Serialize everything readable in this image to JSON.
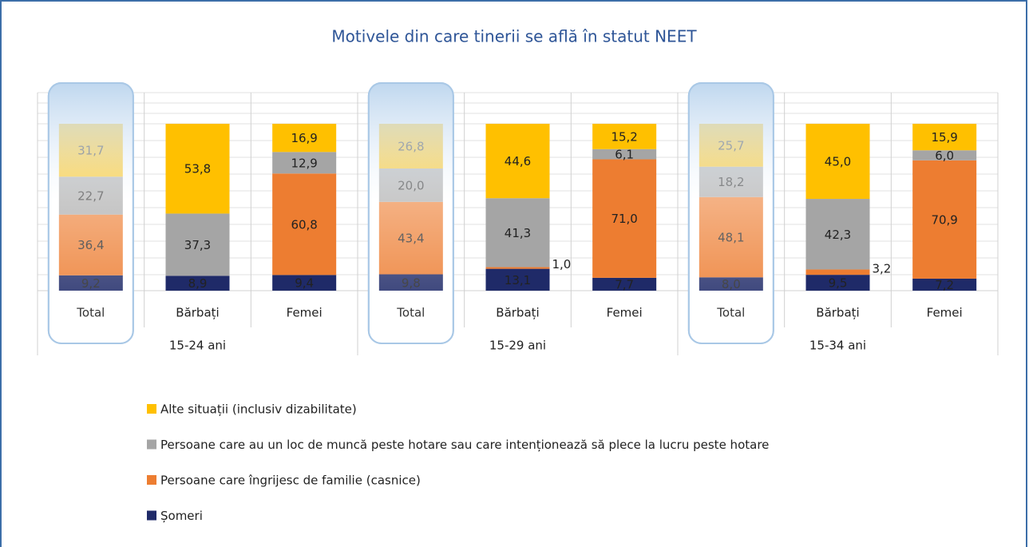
{
  "chart_data": {
    "type": "stacked-bar",
    "title": "Motivele din care tinerii se află în statut NEET",
    "categories": [
      "Total",
      "Bărbați",
      "Femei",
      "Total",
      "Bărbați",
      "Femei",
      "Total",
      "Bărbați",
      "Femei"
    ],
    "groups": [
      "15-24 ani",
      "15-29 ani",
      "15-34 ani"
    ],
    "ylim": [
      0,
      100
    ],
    "series": [
      {
        "name": "Șomeri",
        "color": "#1f2a68",
        "values": [
          9.2,
          8.9,
          9.4,
          9.8,
          13.1,
          7.7,
          8.0,
          9.5,
          7.2
        ],
        "value_labels": [
          "9,2",
          "8,9",
          "9,4",
          "9,8",
          "13,1",
          "7,7",
          "8,0",
          "9,5",
          "7,2"
        ]
      },
      {
        "name": "Persoane care îngrijesc de familie (casnice)",
        "color": "#ed7d31",
        "values": [
          36.4,
          null,
          60.8,
          43.4,
          1.0,
          71.0,
          48.1,
          3.2,
          70.9
        ],
        "value_labels": [
          "36,4",
          null,
          "60,8",
          "43,4",
          "1,0",
          "71,0",
          "48,1",
          "3,2",
          "70,9"
        ]
      },
      {
        "name": "Persoane care au un loc de muncă peste hotare sau care intenționează să plece la lucru peste hotare",
        "color": "#a5a5a5",
        "values": [
          22.7,
          37.3,
          12.9,
          20.0,
          41.3,
          6.1,
          18.2,
          42.3,
          6.0
        ],
        "value_labels": [
          "22,7",
          "37,3",
          "12,9",
          "20,0",
          "41,3",
          "6,1",
          "18,2",
          "42,3",
          "6,0"
        ]
      },
      {
        "name": "Alte situații (inclusiv dizabilitate)",
        "color": "#ffc000",
        "values": [
          31.7,
          53.8,
          16.9,
          26.8,
          44.6,
          15.2,
          25.7,
          45.0,
          15.9
        ],
        "value_labels": [
          "31,7",
          "53,8",
          "16,9",
          "26,8",
          "44,6",
          "15,2",
          "25,7",
          "45,0",
          "15,9"
        ]
      }
    ]
  }
}
